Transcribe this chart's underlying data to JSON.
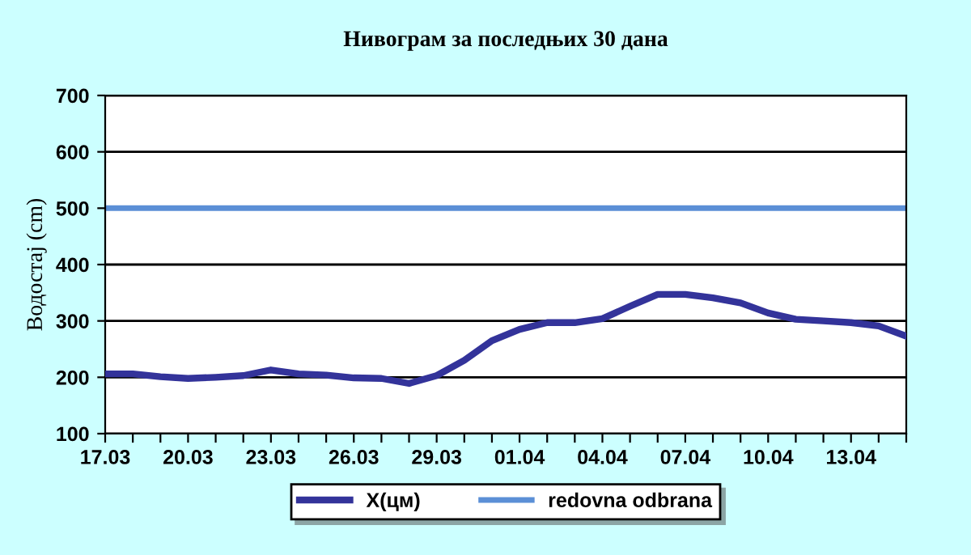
{
  "chart_data": {
    "type": "line",
    "title": "Нивограм за последњих 30 дана",
    "ylabel": "Водостај (cm)",
    "categories": [
      "17.03",
      null,
      null,
      "20.03",
      null,
      null,
      "23.03",
      null,
      null,
      "26.03",
      null,
      null,
      "29.03",
      null,
      null,
      "01.04",
      null,
      null,
      "04.04",
      null,
      null,
      "07.04",
      null,
      null,
      "10.04",
      null,
      null,
      "13.04",
      null,
      null
    ],
    "series": [
      {
        "name": "X(цм)",
        "color": "#33339a",
        "values": [
          206,
          206,
          201,
          198,
          200,
          203,
          213,
          206,
          204,
          199,
          198,
          189,
          203,
          230,
          265,
          285,
          297,
          297,
          304,
          326,
          347,
          347,
          341,
          332,
          314,
          303,
          300,
          297,
          291,
          273
        ]
      }
    ],
    "ref_lines": [
      {
        "axis": "y",
        "value": 500,
        "label": "redovna odbrana",
        "color": "#5b8fd6"
      }
    ],
    "ylim": [
      100,
      700
    ],
    "yticks": [
      100,
      200,
      300,
      400,
      500,
      600,
      700
    ],
    "grid": "y",
    "legend": "bottom",
    "line_style": "solid",
    "marker": "none"
  }
}
